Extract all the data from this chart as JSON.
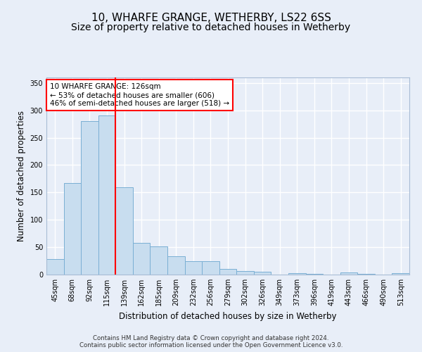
{
  "title": "10, WHARFE GRANGE, WETHERBY, LS22 6SS",
  "subtitle": "Size of property relative to detached houses in Wetherby",
  "xlabel": "Distribution of detached houses by size in Wetherby",
  "ylabel": "Number of detached properties",
  "categories": [
    "45sqm",
    "68sqm",
    "92sqm",
    "115sqm",
    "139sqm",
    "162sqm",
    "185sqm",
    "209sqm",
    "232sqm",
    "256sqm",
    "279sqm",
    "302sqm",
    "326sqm",
    "349sqm",
    "373sqm",
    "396sqm",
    "419sqm",
    "443sqm",
    "466sqm",
    "490sqm",
    "513sqm"
  ],
  "values": [
    28,
    167,
    280,
    291,
    160,
    58,
    52,
    33,
    25,
    25,
    10,
    6,
    5,
    0,
    3,
    1,
    0,
    4,
    1,
    0,
    3
  ],
  "bar_color": "#c8ddef",
  "bar_edge_color": "#7aafd4",
  "vline_x": 3.5,
  "vline_color": "red",
  "annotation_text": "10 WHARFE GRANGE: 126sqm\n← 53% of detached houses are smaller (606)\n46% of semi-detached houses are larger (518) →",
  "annotation_box_color": "white",
  "annotation_box_edge_color": "red",
  "ylim": [
    0,
    360
  ],
  "yticks": [
    0,
    50,
    100,
    150,
    200,
    250,
    300,
    350
  ],
  "footnote1": "Contains HM Land Registry data © Crown copyright and database right 2024.",
  "footnote2": "Contains public sector information licensed under the Open Government Licence v3.0.",
  "bg_color": "#e8eef8",
  "plot_bg_color": "#e8eef8",
  "grid_color": "white",
  "title_fontsize": 11,
  "subtitle_fontsize": 10,
  "tick_fontsize": 7,
  "label_fontsize": 8.5,
  "footnote_fontsize": 6.2
}
